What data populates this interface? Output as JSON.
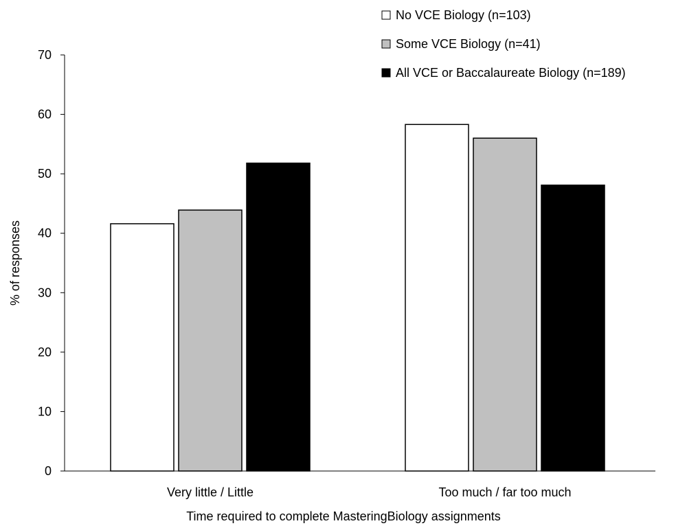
{
  "chart_data": {
    "type": "bar",
    "title": "",
    "xlabel": "Time required to complete MasteringBiology assignments",
    "ylabel": "% of responses",
    "ylim": [
      0,
      70
    ],
    "yticks": [
      0,
      10,
      20,
      30,
      40,
      50,
      60,
      70
    ],
    "grid": false,
    "legend_position": "top-right",
    "categories": [
      "Very little / Little",
      "Too much / far too much"
    ],
    "series": [
      {
        "name": "No VCE Biology (n=103)",
        "color": "#ffffff",
        "values": [
          41.6,
          58.3
        ]
      },
      {
        "name": "Some VCE Biology (n=41)",
        "color": "#c0c0c0",
        "values": [
          43.9,
          56.0
        ]
      },
      {
        "name": "All VCE or Baccalaureate Biology (n=189)",
        "color": "#000000",
        "values": [
          51.8,
          48.1
        ]
      }
    ]
  }
}
